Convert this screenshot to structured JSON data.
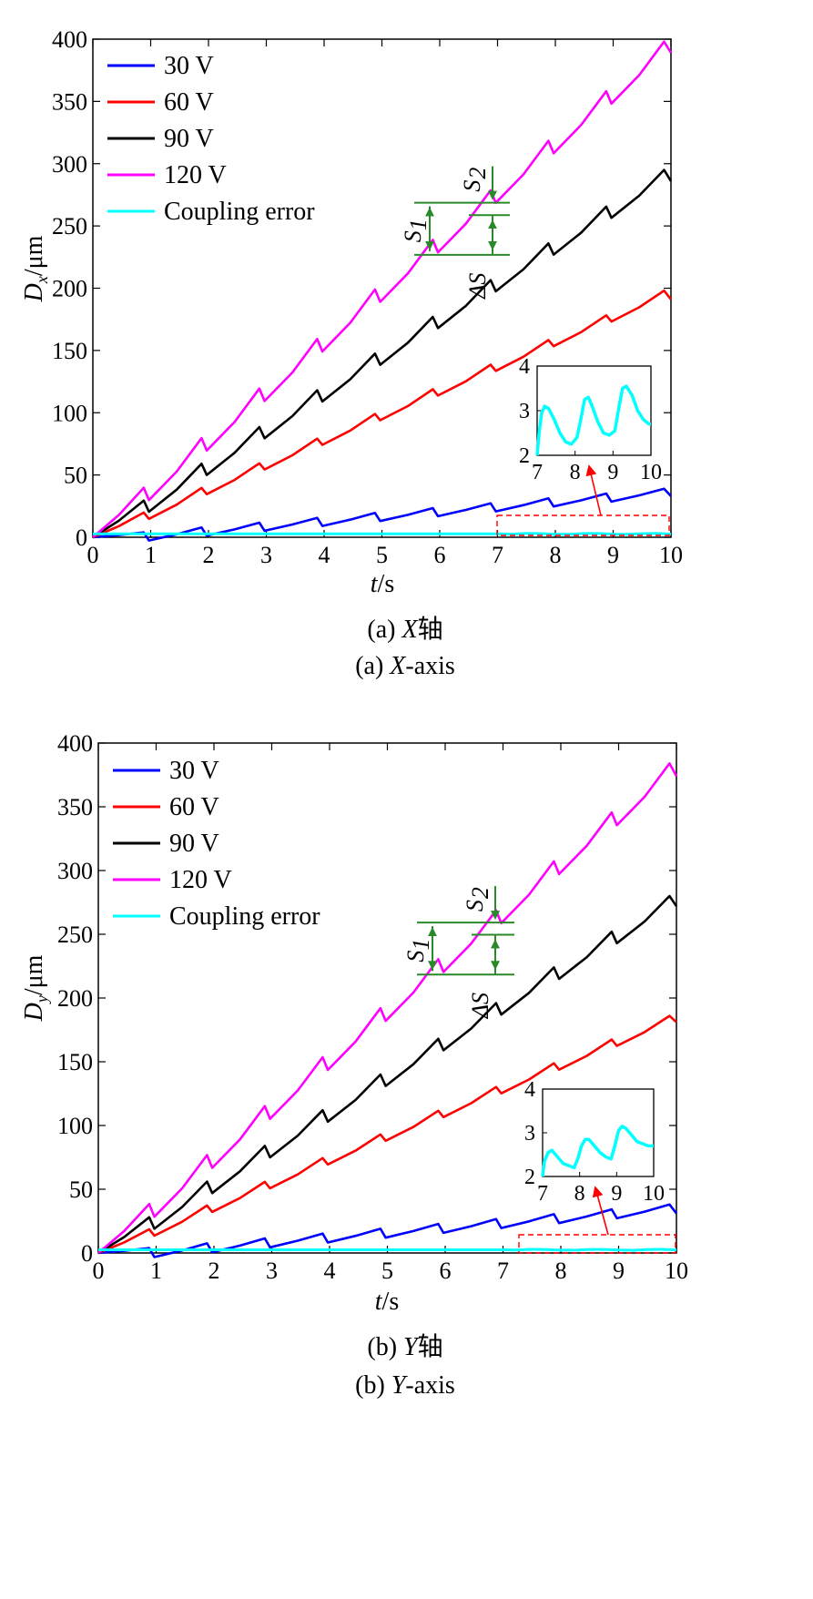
{
  "chart_data": [
    {
      "type": "line",
      "caption_cn": {
        "prefix": "(a) ",
        "axis": "X",
        "suffix": "轴"
      },
      "caption_en": {
        "prefix": "(a) ",
        "axis": "X",
        "suffix": "-axis"
      },
      "ylabel": {
        "main": "D",
        "sub": "x",
        "unit": "/μm"
      },
      "xlabel": {
        "main": "t",
        "unit": "/s"
      },
      "xlim": [
        0,
        10
      ],
      "ylim": [
        0,
        400
      ],
      "xticks": [
        "0",
        "1",
        "2",
        "3",
        "4",
        "5",
        "6",
        "7",
        "8",
        "9",
        "10"
      ],
      "yticks": [
        "0",
        "50",
        "100",
        "150",
        "200",
        "250",
        "300",
        "350",
        "400"
      ],
      "legend_position": "top-left",
      "series": [
        {
          "name": "30 V",
          "color": "#0000ff",
          "step_rise": 3.9,
          "drop": 6.5,
          "final": 33
        },
        {
          "name": "60 V",
          "color": "#ff0000",
          "step_rise": 19.8,
          "drop": 5,
          "final": 191
        },
        {
          "name": "90 V",
          "color": "#000000",
          "step_rise": 29.5,
          "drop": 9,
          "final": 286
        },
        {
          "name": "120 V",
          "color": "#ff00ff",
          "step_rise": 39.8,
          "drop": 10,
          "final": 389
        },
        {
          "name": "Coupling error",
          "color": "#00ffff",
          "level": 2.7
        }
      ],
      "annotations": {
        "s1": "S",
        "s1_sub": "1",
        "s2": "S",
        "s2_sub": "2",
        "ds": "ΔS"
      },
      "inset": {
        "xlim": [
          7,
          10
        ],
        "ylim": [
          2,
          4
        ],
        "xticks": [
          "7",
          "8",
          "9",
          "10"
        ],
        "yticks": [
          "2",
          "3",
          "4"
        ],
        "x": [
          7.0,
          7.05,
          7.12,
          7.2,
          7.3,
          7.45,
          7.6,
          7.75,
          7.9,
          8.05,
          8.15,
          8.25,
          8.35,
          8.45,
          8.6,
          8.75,
          8.9,
          9.05,
          9.15,
          9.25,
          9.35,
          9.5,
          9.65,
          9.8,
          9.95,
          10.0
        ],
        "y": [
          2.0,
          2.5,
          2.95,
          3.1,
          3.05,
          2.8,
          2.5,
          2.3,
          2.25,
          2.4,
          2.8,
          3.25,
          3.3,
          3.1,
          2.75,
          2.5,
          2.45,
          2.55,
          3.05,
          3.5,
          3.55,
          3.35,
          3.0,
          2.8,
          2.7,
          2.7
        ]
      }
    },
    {
      "type": "line",
      "caption_cn": {
        "prefix": "(b) ",
        "axis": "Y",
        "suffix": "轴"
      },
      "caption_en": {
        "prefix": "(b) ",
        "axis": "Y",
        "suffix": "-axis"
      },
      "ylabel": {
        "main": "D",
        "sub": "y",
        "unit": "/μm"
      },
      "xlabel": {
        "main": "t",
        "unit": "/s"
      },
      "xlim": [
        0,
        10
      ],
      "ylim": [
        0,
        400
      ],
      "xticks": [
        "0",
        "1",
        "2",
        "3",
        "4",
        "5",
        "6",
        "7",
        "8",
        "9",
        "10"
      ],
      "yticks": [
        "0",
        "50",
        "100",
        "150",
        "200",
        "250",
        "300",
        "350",
        "400"
      ],
      "legend_position": "top-left",
      "series": [
        {
          "name": "30 V",
          "color": "#0000ff",
          "step_rise": 3.8,
          "drop": 7,
          "final": 31
        },
        {
          "name": "60 V",
          "color": "#ff0000",
          "step_rise": 18.6,
          "drop": 5,
          "final": 181
        },
        {
          "name": "90 V",
          "color": "#000000",
          "step_rise": 28,
          "drop": 9,
          "final": 272
        },
        {
          "name": "120 V",
          "color": "#ff00ff",
          "step_rise": 38.4,
          "drop": 10,
          "final": 374
        },
        {
          "name": "Coupling error",
          "color": "#00ffff",
          "level": 2.5
        }
      ],
      "annotations": {
        "s1": "S",
        "s1_sub": "1",
        "s2": "S",
        "s2_sub": "2",
        "ds": "ΔS"
      },
      "inset": {
        "xlim": [
          7,
          10
        ],
        "ylim": [
          2,
          4
        ],
        "xticks": [
          "7",
          "8",
          "9",
          "10"
        ],
        "yticks": [
          "2",
          "3",
          "4"
        ],
        "x": [
          7.0,
          7.05,
          7.15,
          7.25,
          7.4,
          7.55,
          7.7,
          7.85,
          7.95,
          8.05,
          8.15,
          8.25,
          8.4,
          8.55,
          8.7,
          8.85,
          8.95,
          9.05,
          9.15,
          9.25,
          9.4,
          9.55,
          9.7,
          9.85,
          10.0
        ],
        "y": [
          2.0,
          2.35,
          2.55,
          2.6,
          2.45,
          2.3,
          2.25,
          2.2,
          2.4,
          2.7,
          2.85,
          2.85,
          2.7,
          2.55,
          2.45,
          2.4,
          2.7,
          3.05,
          3.15,
          3.1,
          2.95,
          2.8,
          2.75,
          2.7,
          2.7
        ]
      }
    }
  ]
}
